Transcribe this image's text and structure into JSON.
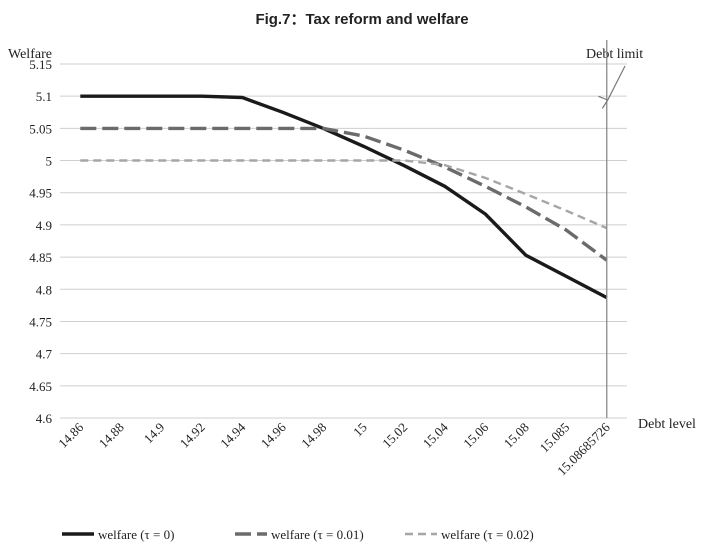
{
  "chart_data": {
    "type": "line",
    "title": "Fig.7：Tax reform and welfare",
    "ylabel": "Welfare",
    "xlabel": "Debt level",
    "annotation": "Debt limit",
    "ylim": [
      4.6,
      5.15
    ],
    "yticks": [
      "5.15",
      "5.1",
      "5.05",
      "5",
      "4.95",
      "4.9",
      "4.85",
      "4.8",
      "4.75",
      "4.7",
      "4.65",
      "4.6"
    ],
    "categories": [
      "14.86",
      "14.88",
      "14.9",
      "14.92",
      "14.94",
      "14.96",
      "14.98",
      "15",
      "15.02",
      "15.04",
      "15.06",
      "15.08",
      "15.085",
      "15.08685726"
    ],
    "grid": "horizontal",
    "legend_position": "bottom",
    "series": [
      {
        "name": "welfare (τ = 0)",
        "color": "#1a1a1a",
        "style": "solid",
        "values": [
          5.1,
          5.1,
          5.1,
          5.1,
          5.098,
          5.075,
          5.05,
          5.022,
          4.992,
          4.96,
          4.917,
          4.853,
          4.82,
          4.787
        ]
      },
      {
        "name": "welfare (τ = 0.01)",
        "color": "#6b6b6b",
        "style": "long-dash",
        "values": [
          5.05,
          5.05,
          5.05,
          5.05,
          5.05,
          5.05,
          5.05,
          5.038,
          5.016,
          4.99,
          4.96,
          4.928,
          4.892,
          4.845
        ]
      },
      {
        "name": "welfare (τ = 0.02)",
        "color": "#a6a6a6",
        "style": "short-dash",
        "values": [
          5.0,
          5.0,
          5.0,
          5.0,
          5.0,
          5.0,
          5.0,
          5.0,
          5.0,
          4.993,
          4.973,
          4.948,
          4.922,
          4.895
        ]
      }
    ]
  }
}
